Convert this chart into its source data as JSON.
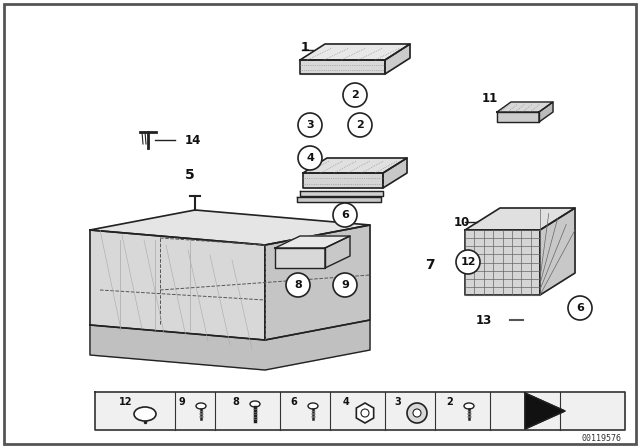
{
  "bg_color": "#ffffff",
  "border_color": "#888888",
  "diagram_bg": "#f8f8f8",
  "part_number_id": "00119576",
  "text_color": "#111111",
  "line_color": "#222222"
}
